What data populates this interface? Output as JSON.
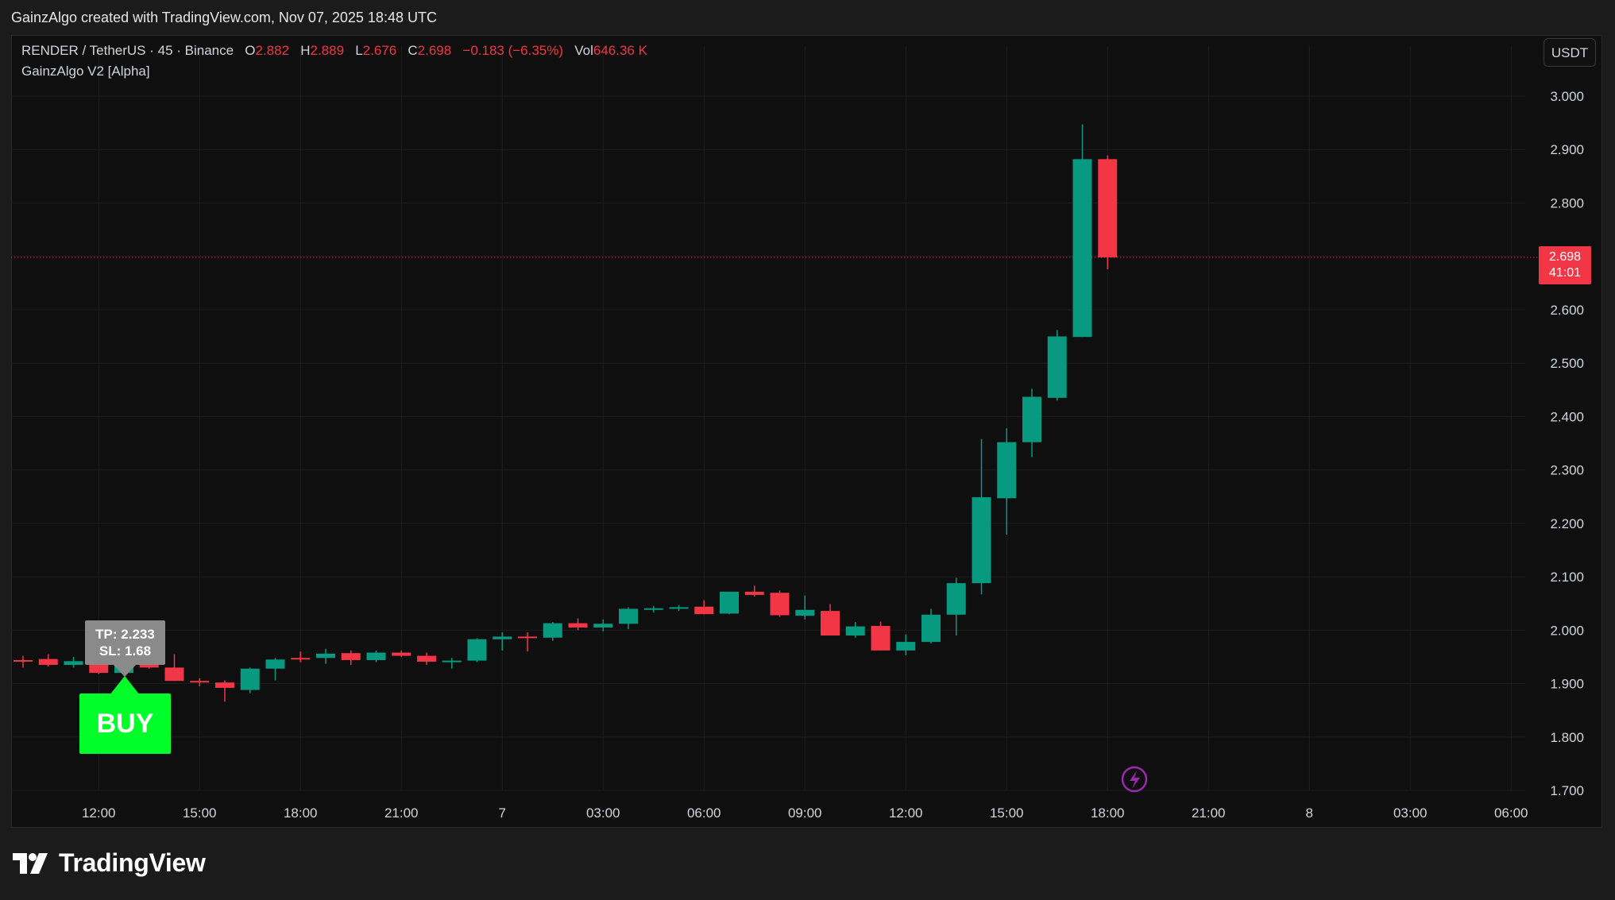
{
  "header": {
    "attribution": "GainzAlgo created with TradingView.com, Nov 07, 2025 18:48 UTC"
  },
  "legend": {
    "symbol": "RENDER / TetherUS · 45 · Binance",
    "o_label": "O",
    "o_value": "2.882",
    "h_label": "H",
    "h_value": "2.889",
    "l_label": "L",
    "l_value": "2.676",
    "c_label": "C",
    "c_value": "2.698",
    "change": "−0.183 (−6.35%)",
    "vol_label": "Vol",
    "vol_value": "646.36 K",
    "indicator": "GainzAlgo V2 [Alpha]"
  },
  "currency_button": "USDT",
  "last_price": {
    "price": "2.698",
    "countdown": "41:01"
  },
  "signal": {
    "label": "BUY",
    "tp": "TP: 2.233",
    "sl": "SL: 1.68"
  },
  "footer": {
    "brand": "TradingView"
  },
  "colors": {
    "up": "#089981",
    "down": "#f23645",
    "buy": "#00ff2a",
    "background": "#0f0f0f"
  },
  "chart_data": {
    "type": "candlestick",
    "ylim": [
      1.7,
      3.0
    ],
    "y_ticks": [
      "3.000",
      "2.900",
      "2.800",
      "2.700",
      "2.600",
      "2.500",
      "2.400",
      "2.300",
      "2.200",
      "2.100",
      "2.000",
      "1.900",
      "1.800",
      "1.700"
    ],
    "x_ticks": [
      "12:00",
      "15:00",
      "18:00",
      "21:00",
      "7",
      "03:00",
      "06:00",
      "09:00",
      "12:00",
      "15:00",
      "18:00",
      "21:00",
      "8",
      "03:00",
      "06:00"
    ],
    "interval": "45",
    "candles": [
      {
        "t": "09:45",
        "o": 1.944,
        "h": 1.952,
        "l": 1.93,
        "c": 1.943
      },
      {
        "t": "10:30",
        "o": 1.946,
        "h": 1.955,
        "l": 1.932,
        "c": 1.935
      },
      {
        "t": "11:15",
        "o": 1.935,
        "h": 1.95,
        "l": 1.93,
        "c": 1.942
      },
      {
        "t": "12:00",
        "o": 1.942,
        "h": 1.952,
        "l": 1.918,
        "c": 1.92
      },
      {
        "t": "12:45",
        "o": 1.92,
        "h": 1.94,
        "l": 1.915,
        "c": 1.938
      },
      {
        "t": "13:30",
        "o": 1.95,
        "h": 1.955,
        "l": 1.928,
        "c": 1.93
      },
      {
        "t": "14:15",
        "o": 1.93,
        "h": 1.955,
        "l": 1.905,
        "c": 1.905
      },
      {
        "t": "15:00",
        "o": 1.905,
        "h": 1.91,
        "l": 1.895,
        "c": 1.903
      },
      {
        "t": "15:45",
        "o": 1.902,
        "h": 1.906,
        "l": 1.866,
        "c": 1.892
      },
      {
        "t": "16:30",
        "o": 1.888,
        "h": 1.93,
        "l": 1.882,
        "c": 1.928
      },
      {
        "t": "17:15",
        "o": 1.928,
        "h": 1.948,
        "l": 1.906,
        "c": 1.945
      },
      {
        "t": "18:00",
        "o": 1.948,
        "h": 1.96,
        "l": 1.94,
        "c": 1.947
      },
      {
        "t": "18:45",
        "o": 1.948,
        "h": 1.965,
        "l": 1.937,
        "c": 1.956
      },
      {
        "t": "19:30",
        "o": 1.957,
        "h": 1.962,
        "l": 1.935,
        "c": 1.944
      },
      {
        "t": "20:15",
        "o": 1.944,
        "h": 1.962,
        "l": 1.94,
        "c": 1.958
      },
      {
        "t": "21:00",
        "o": 1.958,
        "h": 1.962,
        "l": 1.95,
        "c": 1.952
      },
      {
        "t": "21:45",
        "o": 1.952,
        "h": 1.958,
        "l": 1.935,
        "c": 1.941
      },
      {
        "t": "22:30",
        "o": 1.941,
        "h": 1.948,
        "l": 1.928,
        "c": 1.943
      },
      {
        "t": "23:15",
        "o": 1.943,
        "h": 1.985,
        "l": 1.94,
        "c": 1.983
      },
      {
        "t": "00:00",
        "o": 1.983,
        "h": 1.996,
        "l": 1.962,
        "c": 1.988
      },
      {
        "t": "00:45",
        "o": 1.988,
        "h": 1.996,
        "l": 1.96,
        "c": 1.987
      },
      {
        "t": "01:30",
        "o": 1.986,
        "h": 2.015,
        "l": 1.98,
        "c": 2.013
      },
      {
        "t": "02:15",
        "o": 2.013,
        "h": 2.022,
        "l": 2.0,
        "c": 2.005
      },
      {
        "t": "03:00",
        "o": 2.005,
        "h": 2.02,
        "l": 1.998,
        "c": 2.012
      },
      {
        "t": "03:45",
        "o": 2.012,
        "h": 2.043,
        "l": 2.002,
        "c": 2.04
      },
      {
        "t": "04:30",
        "o": 2.04,
        "h": 2.045,
        "l": 2.033,
        "c": 2.041
      },
      {
        "t": "05:15",
        "o": 2.041,
        "h": 2.047,
        "l": 2.036,
        "c": 2.043
      },
      {
        "t": "06:00",
        "o": 2.044,
        "h": 2.056,
        "l": 2.03,
        "c": 2.03
      },
      {
        "t": "06:45",
        "o": 2.031,
        "h": 2.072,
        "l": 2.03,
        "c": 2.072
      },
      {
        "t": "07:30",
        "o": 2.072,
        "h": 2.083,
        "l": 2.063,
        "c": 2.066
      },
      {
        "t": "08:15",
        "o": 2.07,
        "h": 2.074,
        "l": 2.025,
        "c": 2.028
      },
      {
        "t": "09:00",
        "o": 2.027,
        "h": 2.065,
        "l": 2.02,
        "c": 2.038
      },
      {
        "t": "09:45",
        "o": 2.036,
        "h": 2.049,
        "l": 1.99,
        "c": 1.99
      },
      {
        "t": "10:30",
        "o": 1.99,
        "h": 2.015,
        "l": 1.986,
        "c": 2.007
      },
      {
        "t": "11:15",
        "o": 2.008,
        "h": 2.016,
        "l": 1.962,
        "c": 1.962
      },
      {
        "t": "12:00",
        "o": 1.962,
        "h": 1.992,
        "l": 1.953,
        "c": 1.978
      },
      {
        "t": "12:45",
        "o": 1.978,
        "h": 2.04,
        "l": 1.975,
        "c": 2.029
      },
      {
        "t": "13:30",
        "o": 2.029,
        "h": 2.098,
        "l": 1.99,
        "c": 2.088
      },
      {
        "t": "14:15",
        "o": 2.088,
        "h": 2.358,
        "l": 2.067,
        "c": 2.249
      },
      {
        "t": "15:00",
        "o": 2.247,
        "h": 2.378,
        "l": 2.179,
        "c": 2.352
      },
      {
        "t": "15:45",
        "o": 2.352,
        "h": 2.452,
        "l": 2.324,
        "c": 2.437
      },
      {
        "t": "16:30",
        "o": 2.435,
        "h": 2.562,
        "l": 2.43,
        "c": 2.55
      },
      {
        "t": "17:15",
        "o": 2.549,
        "h": 2.947,
        "l": 2.549,
        "c": 2.882
      },
      {
        "t": "18:00",
        "o": 2.882,
        "h": 2.889,
        "l": 2.676,
        "c": 2.698
      }
    ]
  }
}
